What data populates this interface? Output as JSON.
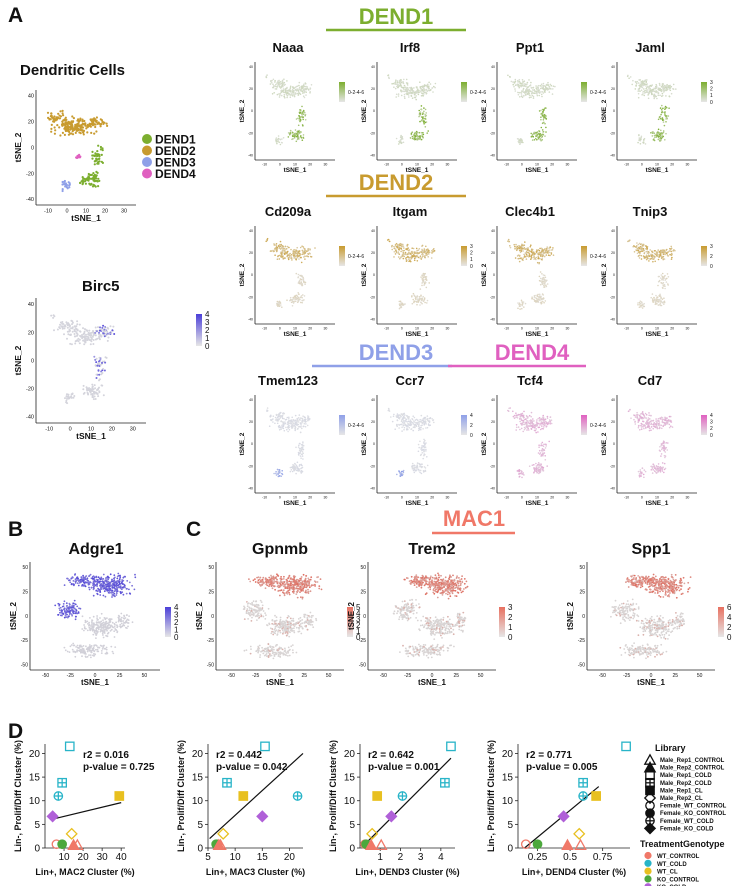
{
  "panel_letters": [
    "A",
    "B",
    "C",
    "D"
  ],
  "colors": {
    "DEND1": "#7cae2f",
    "DEND2": "#c89b2f",
    "DEND3": "#8fa0e8",
    "DEND4": "#e060c0",
    "MAC1": "#f07868",
    "purple": "#4b3fd8",
    "grey": "#d0d0d0"
  },
  "panelA": {
    "cluster_plot": {
      "title": "Dendritic Cells",
      "xlabel": "tSNE_1",
      "ylabel": "tSNE_2",
      "xticks": [
        "-10",
        "0",
        "10",
        "20",
        "30"
      ],
      "yticks": [
        "40",
        "20",
        "0",
        "-20",
        "-40"
      ],
      "legend": [
        "DEND1",
        "DEND2",
        "DEND3",
        "DEND4"
      ]
    },
    "birc5": {
      "title": "Birc5",
      "xlabel": "tSNE_1",
      "ylabel": "tSNE_2",
      "xticks": [
        "-10",
        "0",
        "10",
        "20",
        "30"
      ],
      "yticks": [
        "40",
        "20",
        "0",
        "-20",
        "-40"
      ],
      "scale": [
        "4",
        "3",
        "2",
        "1",
        "0"
      ]
    },
    "groups": [
      {
        "name": "DEND1",
        "genes": [
          "Naaa",
          "Irf8",
          "Ppt1",
          "Jaml"
        ],
        "scales": [
          [
            "0-2-4-6"
          ],
          [
            "0-2-4-6"
          ],
          [
            "0-2-4-6"
          ],
          [
            "3",
            "2",
            "1",
            "0"
          ]
        ]
      },
      {
        "name": "DEND2",
        "genes": [
          "Cd209a",
          "Itgam",
          "Clec4b1",
          "Tnip3"
        ],
        "scales": [
          [
            "0-2-4-6"
          ],
          [
            "3",
            "2",
            "1",
            "0"
          ],
          [
            "0-2-4-6"
          ],
          [
            "3",
            "2",
            "0"
          ]
        ]
      },
      {
        "name": "DEND3",
        "genes": [
          "Tmem123",
          "Ccr7"
        ],
        "scales": [
          [
            "0-2-4-6"
          ],
          [
            "4",
            "2",
            "0"
          ]
        ]
      },
      {
        "name": "DEND4",
        "genes": [
          "Tcf4",
          "Cd7"
        ],
        "scales": [
          [
            "0-2-4-6"
          ],
          [
            "4",
            "3",
            "2",
            "0"
          ]
        ]
      }
    ],
    "axis_label_x": "tSNE_1",
    "axis_label_y": "tSNE_2",
    "small_xticks": [
      "-10",
      "0",
      "10",
      "20",
      "30"
    ],
    "small_yticks": [
      "40",
      "20",
      "0",
      "-20",
      "-40"
    ]
  },
  "panelB": {
    "title": "Adgre1",
    "xlabel": "tSNE_1",
    "ylabel": "tSNE_2",
    "xticks": [
      "-50",
      "-25",
      "0",
      "25",
      "50"
    ],
    "yticks": [
      "50",
      "25",
      "0",
      "-25",
      "-50"
    ],
    "scale": [
      "4",
      "3",
      "2",
      "1",
      "0"
    ]
  },
  "panelC": {
    "header": "MAC1",
    "plots": [
      {
        "title": "Gpnmb",
        "scale": [
          "5",
          "4",
          "3",
          "2",
          "1",
          "0"
        ]
      },
      {
        "title": "Trem2",
        "scale": [
          "3",
          "2",
          "1",
          "0"
        ]
      },
      {
        "title": "Spp1",
        "scale": [
          "6",
          "4",
          "2",
          "0"
        ]
      }
    ],
    "xlabel": "tSNE_1",
    "ylabel": "tSNE_2",
    "xticks": [
      "-50",
      "-25",
      "0",
      "25",
      "50"
    ],
    "yticks": [
      "50",
      "25",
      "0",
      "-25",
      "-50"
    ]
  },
  "panelD": {
    "ylabel": "Lin-, Prolif/Diff Cluster (%)",
    "legend_library_title": "Library",
    "library": [
      "Male_Rep1_CONTROL",
      "Male_Rep2_CONTROL",
      "Male_Rep1_COLD",
      "Male_Rep2_COLD",
      "Male_Rep1_CL",
      "Male_Rep2_CL",
      "Female_WT_CONTROL",
      "Female_KO_CONTROL",
      "Female_WT_COLD",
      "Female_KO_COLD"
    ],
    "legend_tg_title": "TreatmentGenotype",
    "treatment_genotype": [
      {
        "label": "WT_CONTROL",
        "color": "#f07868"
      },
      {
        "label": "WT_COLD",
        "color": "#28b4c8"
      },
      {
        "label": "WT_CL",
        "color": "#e8c020"
      },
      {
        "label": "KO_CONTROL",
        "color": "#4ca83c"
      },
      {
        "label": "KO_COLD",
        "color": "#b060d8"
      }
    ]
  },
  "chart_data": [
    {
      "type": "scatter",
      "title": "",
      "xlabel": "Lin+, MAC2 Cluster (%)",
      "ylabel": "Lin-, Prolif/Diff Cluster (%)",
      "r2_text": "r2 = 0.016",
      "p_text": "p-value = 0.725",
      "xlim": [
        0,
        42
      ],
      "ylim": [
        0,
        22
      ],
      "xticks": [
        10,
        20,
        30,
        40
      ],
      "yticks": [
        0,
        5,
        10,
        15,
        20
      ],
      "fit": [
        [
          5,
          6.2
        ],
        [
          40,
          9.6
        ]
      ],
      "points": [
        {
          "x": 13,
          "y": 21.5,
          "shape": "square",
          "color": "#28b4c8"
        },
        {
          "x": 9,
          "y": 13.8,
          "shape": "square-plus",
          "color": "#28b4c8"
        },
        {
          "x": 7,
          "y": 11,
          "shape": "circle-plus",
          "color": "#28b4c8"
        },
        {
          "x": 39,
          "y": 11,
          "shape": "square-filled",
          "color": "#e8c020"
        },
        {
          "x": 4,
          "y": 6.7,
          "shape": "diamond-filled",
          "color": "#b060d8"
        },
        {
          "x": 14,
          "y": 3,
          "shape": "diamond",
          "color": "#e8c020"
        },
        {
          "x": 6,
          "y": 0.8,
          "shape": "circle",
          "color": "#f07868"
        },
        {
          "x": 9,
          "y": 0.8,
          "shape": "circle-filled",
          "color": "#4ca83c"
        },
        {
          "x": 15,
          "y": 0.6,
          "shape": "triangle-filled",
          "color": "#f07868"
        },
        {
          "x": 17,
          "y": 0.6,
          "shape": "triangle",
          "color": "#f07868"
        }
      ]
    },
    {
      "type": "scatter",
      "xlabel": "Lin+, MAC3 Cluster (%)",
      "ylabel": "Lin-, Prolif/Diff Cluster (%)",
      "r2_text": "r2 = 0.442",
      "p_text": "p-value = 0.042",
      "xlim": [
        5,
        22.5
      ],
      "ylim": [
        0,
        22
      ],
      "xticks": [
        5,
        10,
        15,
        20
      ],
      "yticks": [
        0,
        5,
        10,
        15,
        20
      ],
      "fit": [
        [
          5.3,
          2
        ],
        [
          22.5,
          20
        ]
      ],
      "points": [
        {
          "x": 15.5,
          "y": 21.5,
          "shape": "square",
          "color": "#28b4c8"
        },
        {
          "x": 8.5,
          "y": 13.8,
          "shape": "square-plus",
          "color": "#28b4c8"
        },
        {
          "x": 21.5,
          "y": 11,
          "shape": "circle-plus",
          "color": "#28b4c8"
        },
        {
          "x": 11.5,
          "y": 11,
          "shape": "square-filled",
          "color": "#e8c020"
        },
        {
          "x": 15,
          "y": 6.7,
          "shape": "diamond-filled",
          "color": "#b060d8"
        },
        {
          "x": 7.8,
          "y": 3,
          "shape": "diamond",
          "color": "#e8c020"
        },
        {
          "x": 6.8,
          "y": 0.8,
          "shape": "circle",
          "color": "#f07868"
        },
        {
          "x": 6.5,
          "y": 0.8,
          "shape": "circle-filled",
          "color": "#4ca83c"
        },
        {
          "x": 7,
          "y": 0.6,
          "shape": "triangle-filled",
          "color": "#f07868"
        },
        {
          "x": 7.3,
          "y": 0.6,
          "shape": "triangle",
          "color": "#f07868"
        }
      ]
    },
    {
      "type": "scatter",
      "xlabel": "Lin+, DEND3 Cluster (%)",
      "ylabel": "Lin-, Prolif/Diff Cluster (%)",
      "r2_text": "r2 = 0.642",
      "p_text": "p-value = 0.001",
      "xlim": [
        0,
        4.7
      ],
      "ylim": [
        0,
        22
      ],
      "xticks": [
        1,
        2,
        3,
        4
      ],
      "yticks": [
        0,
        5,
        10,
        15,
        20
      ],
      "fit": [
        [
          0.1,
          0.2
        ],
        [
          4.5,
          19
        ]
      ],
      "points": [
        {
          "x": 4.5,
          "y": 21.5,
          "shape": "square",
          "color": "#28b4c8"
        },
        {
          "x": 4.2,
          "y": 13.8,
          "shape": "square-plus",
          "color": "#28b4c8"
        },
        {
          "x": 2.1,
          "y": 11,
          "shape": "circle-plus",
          "color": "#28b4c8"
        },
        {
          "x": 0.85,
          "y": 11,
          "shape": "square-filled",
          "color": "#e8c020"
        },
        {
          "x": 1.55,
          "y": 6.7,
          "shape": "diamond-filled",
          "color": "#b060d8"
        },
        {
          "x": 0.6,
          "y": 3,
          "shape": "diamond",
          "color": "#e8c020"
        },
        {
          "x": 0.25,
          "y": 0.8,
          "shape": "circle",
          "color": "#f07868"
        },
        {
          "x": 0.3,
          "y": 0.8,
          "shape": "circle-filled",
          "color": "#4ca83c"
        },
        {
          "x": 0.55,
          "y": 0.6,
          "shape": "triangle-filled",
          "color": "#f07868"
        },
        {
          "x": 1.05,
          "y": 0.6,
          "shape": "triangle",
          "color": "#f07868"
        }
      ]
    },
    {
      "type": "scatter",
      "xlabel": "Lin+, DEND4 Cluster (%)",
      "ylabel": "Lin-, Prolif/Diff Cluster (%)",
      "r2_text": "r2 = 0.771",
      "p_text": "p-value = 0.005",
      "xlim": [
        0.1,
        0.96
      ],
      "ylim": [
        0,
        22
      ],
      "xticks": [
        0.25,
        0.5,
        0.75
      ],
      "yticks": [
        0,
        5,
        10,
        15,
        20
      ],
      "fit": [
        [
          0.15,
          0
        ],
        [
          0.72,
          13
        ]
      ],
      "points": [
        {
          "x": 0.93,
          "y": 21.5,
          "shape": "square",
          "color": "#28b4c8"
        },
        {
          "x": 0.6,
          "y": 13.8,
          "shape": "square-plus",
          "color": "#28b4c8"
        },
        {
          "x": 0.6,
          "y": 11,
          "shape": "circle-plus",
          "color": "#28b4c8"
        },
        {
          "x": 0.7,
          "y": 11,
          "shape": "square-filled",
          "color": "#e8c020"
        },
        {
          "x": 0.45,
          "y": 6.7,
          "shape": "diamond-filled",
          "color": "#b060d8"
        },
        {
          "x": 0.57,
          "y": 3,
          "shape": "diamond",
          "color": "#e8c020"
        },
        {
          "x": 0.16,
          "y": 0.8,
          "shape": "circle",
          "color": "#f07868"
        },
        {
          "x": 0.25,
          "y": 0.8,
          "shape": "circle-filled",
          "color": "#4ca83c"
        },
        {
          "x": 0.48,
          "y": 0.6,
          "shape": "triangle-filled",
          "color": "#f07868"
        },
        {
          "x": 0.58,
          "y": 0.6,
          "shape": "triangle",
          "color": "#f07868"
        }
      ]
    }
  ]
}
